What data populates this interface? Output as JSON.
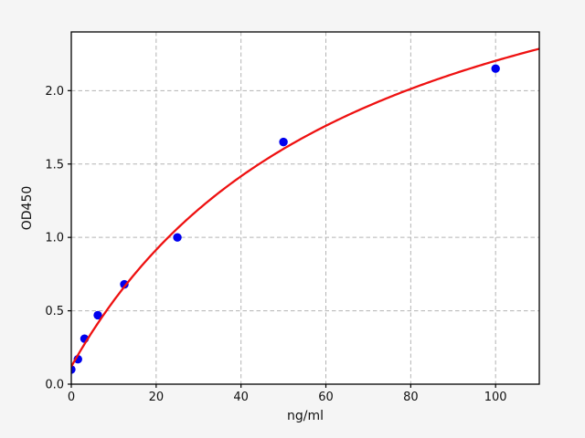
{
  "chart_data": {
    "type": "scatter",
    "title": "",
    "xlabel": "ng/ml",
    "ylabel": "OD450",
    "xlim": [
      0,
      110.3
    ],
    "ylim": [
      0,
      2.4
    ],
    "xticks": [
      0,
      20,
      40,
      60,
      80,
      100
    ],
    "yticks": [
      0.0,
      0.5,
      1.0,
      1.5,
      2.0
    ],
    "grid": true,
    "grid_style": "dashed",
    "legend": false,
    "series": [
      {
        "name": "standard-points",
        "type": "scatter",
        "color": "#0000ee",
        "marker": "circle",
        "marker_radius": 4.7,
        "x": [
          0,
          1.56,
          3.12,
          6.25,
          12.5,
          25,
          50,
          100
        ],
        "y": [
          0.1,
          0.17,
          0.31,
          0.47,
          0.68,
          1.0,
          1.65,
          2.15
        ]
      },
      {
        "name": "fit-curve",
        "type": "line",
        "color": "#ee1111",
        "line_width": 2.3,
        "model": "saturation: y = a*x/(b+x) + c",
        "params": {
          "a": 3.5,
          "b": 68,
          "c": 0.12
        },
        "sample_x": [
          0,
          10,
          20,
          30,
          40,
          50,
          60,
          70,
          80,
          90,
          100,
          110
        ],
        "sample_y": [
          0.12,
          0.57,
          0.92,
          1.19,
          1.42,
          1.6,
          1.76,
          1.9,
          2.01,
          2.11,
          2.2,
          2.28
        ]
      }
    ],
    "colors": {
      "figure_background": "#f5f5f5",
      "plot_background": "#ffffff",
      "grid": "#b3b3b3",
      "spine": "#000000",
      "tick_label": "#111111"
    }
  }
}
